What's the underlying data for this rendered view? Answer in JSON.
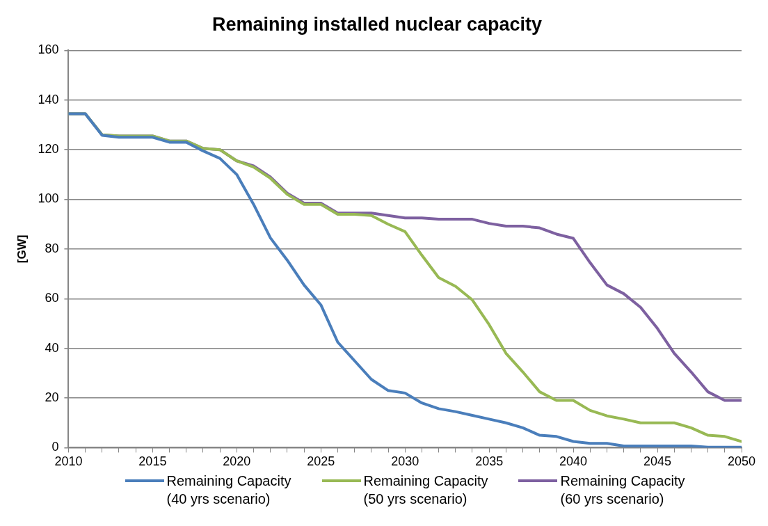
{
  "chart_data": {
    "type": "line",
    "title": "Remaining installed nuclear capacity",
    "ylabel": "[GW]",
    "x": [
      2010,
      2011,
      2012,
      2013,
      2014,
      2015,
      2016,
      2017,
      2018,
      2019,
      2020,
      2021,
      2022,
      2023,
      2024,
      2025,
      2026,
      2027,
      2028,
      2029,
      2030,
      2031,
      2032,
      2033,
      2034,
      2035,
      2036,
      2037,
      2038,
      2039,
      2040,
      2041,
      2042,
      2043,
      2044,
      2045,
      2046,
      2047,
      2048,
      2049,
      2050
    ],
    "xlim": [
      2010,
      2050
    ],
    "xticks": [
      2010,
      2015,
      2020,
      2025,
      2030,
      2035,
      2040,
      2045,
      2050
    ],
    "ylim": [
      0,
      160
    ],
    "yticks": [
      0,
      20,
      40,
      60,
      80,
      100,
      120,
      140,
      160
    ],
    "grid": "y",
    "legend": "bottom",
    "marker": "none",
    "line_style": "solid",
    "series": [
      {
        "name": "Remaining Capacity\n(40 yrs scenario)",
        "color": "#4a7ebb",
        "values": [
          134.5,
          134.5,
          125.8,
          125,
          125,
          125,
          123,
          123,
          119.5,
          116.5,
          110,
          98,
          84.5,
          75.5,
          65.5,
          57.5,
          42.5,
          35,
          27.5,
          23,
          22,
          18,
          15.7,
          14.5,
          13,
          11.5,
          10,
          8,
          5,
          4.5,
          2.5,
          1.7,
          1.7,
          0.7,
          0.7,
          0.7,
          0.7,
          0.7,
          0.2,
          0.2,
          0.2
        ]
      },
      {
        "name": "Remaining Capacity\n(50 yrs scenario)",
        "color": "#98b954",
        "values": [
          134.5,
          134.5,
          126,
          125.5,
          125.5,
          125.5,
          123.5,
          123.5,
          120.5,
          120,
          115.5,
          113,
          108.5,
          102,
          98,
          98,
          94,
          94,
          93.5,
          90,
          87,
          77.5,
          68.5,
          65,
          59.5,
          49.5,
          38,
          30.5,
          22.5,
          19,
          19,
          15,
          12.8,
          11.5,
          10,
          10,
          10,
          8,
          5,
          4.5,
          2.5
        ]
      },
      {
        "name": "Remaining Capacity\n(60 yrs scenario)",
        "color": "#7d60a0",
        "values": [
          134.5,
          134.5,
          126,
          125.5,
          125.5,
          125.5,
          123.5,
          123.5,
          120.5,
          120,
          115.5,
          113.5,
          109,
          102.5,
          98.5,
          98.5,
          94.5,
          94.5,
          94.5,
          93.5,
          92.5,
          92.5,
          92,
          92,
          92,
          90.3,
          89.2,
          89.2,
          88.5,
          86,
          84.3,
          74.5,
          65.5,
          62,
          56.5,
          48,
          38,
          30.5,
          22.5,
          19,
          19
        ]
      }
    ]
  }
}
